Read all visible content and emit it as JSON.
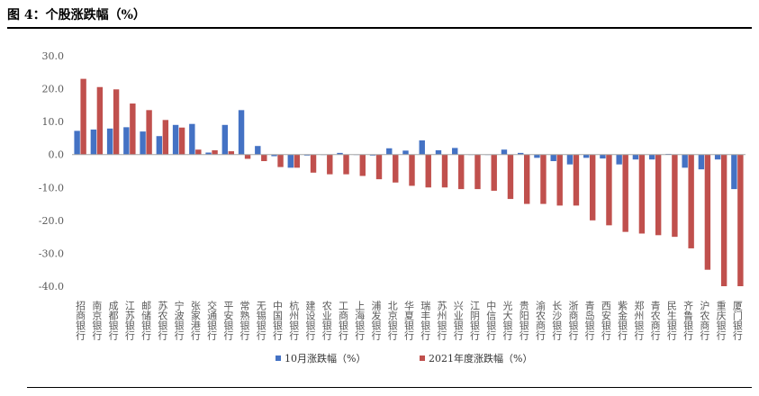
{
  "title": "图 4：个股涨跌幅（%）",
  "chart_data": {
    "type": "bar",
    "categories": [
      "招商银行",
      "南京银行",
      "成都银行",
      "江苏银行",
      "邮储银行",
      "苏农银行",
      "宁波银行",
      "张家港行",
      "交通银行",
      "平安银行",
      "常熟银行",
      "无锡银行",
      "中国银行",
      "杭州银行",
      "建设银行",
      "农业银行",
      "工商银行",
      "上海银行",
      "浦发银行",
      "北京银行",
      "华夏银行",
      "瑞丰银行",
      "苏州银行",
      "兴业银行",
      "江阴银行",
      "中信银行",
      "光大银行",
      "贵阳银行",
      "渝农商行",
      "长沙银行",
      "浙商银行",
      "青岛银行",
      "西安银行",
      "紫金银行",
      "郑州银行",
      "青农商行",
      "民生银行",
      "齐鲁银行",
      "沪农商行",
      "重庆银行",
      "厦门银行"
    ],
    "series": [
      {
        "name": "10月涨跌幅（%）",
        "color": "#4472C4",
        "values": [
          7.2,
          7.6,
          7.9,
          8.3,
          7.0,
          5.6,
          9.0,
          9.3,
          0.6,
          9.0,
          13.5,
          2.6,
          -0.5,
          -4.0,
          -0.3,
          0.0,
          0.5,
          0.0,
          -0.3,
          1.9,
          1.2,
          4.3,
          1.3,
          2.0,
          0.0,
          0.0,
          1.5,
          0.5,
          -1.0,
          -2.0,
          -3.0,
          -1.0,
          -1.2,
          -3.0,
          -1.5,
          -1.5,
          0.2,
          -4.0,
          -4.5,
          -1.5,
          -10.5
        ]
      },
      {
        "name": "2021年度涨跌幅（%）",
        "color": "#C0504D",
        "values": [
          23.0,
          20.5,
          19.8,
          15.5,
          13.5,
          10.5,
          8.2,
          1.5,
          1.3,
          1.0,
          -1.3,
          -2.0,
          -3.8,
          -4.0,
          -5.5,
          -6.0,
          -6.0,
          -6.5,
          -7.5,
          -8.5,
          -9.5,
          -10.0,
          -10.0,
          -10.5,
          -10.5,
          -11.0,
          -13.5,
          -15.0,
          -15.0,
          -15.5,
          -15.5,
          -20.0,
          -21.5,
          -23.5,
          -24.0,
          -24.5,
          -25.0,
          -28.5,
          -35.0,
          -40.0,
          -40.0
        ]
      }
    ],
    "ylim": [
      -40,
      30
    ],
    "yticks": [
      "30.0",
      "20.0",
      "10.0",
      "0.0",
      "-10.0",
      "-20.0",
      "-30.0",
      "-40.0"
    ],
    "legend_position": "bottom",
    "grid": false
  }
}
